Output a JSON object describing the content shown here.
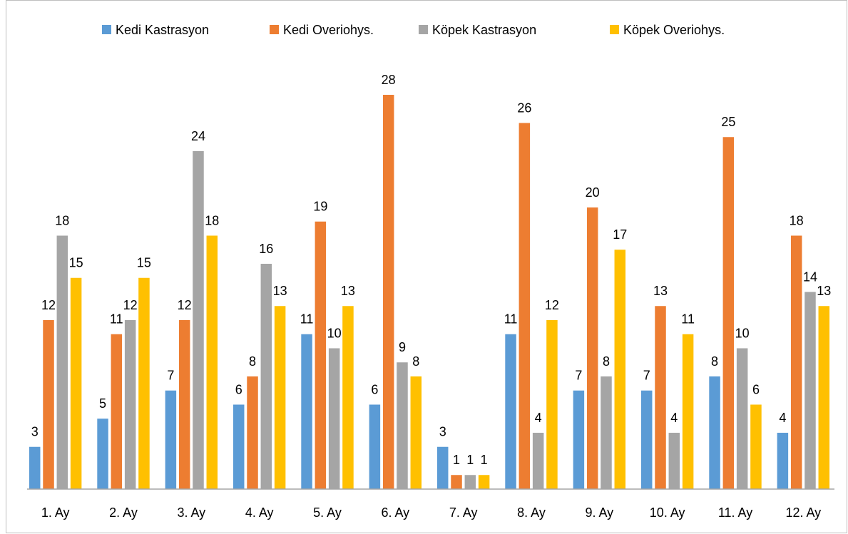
{
  "chart_data": {
    "type": "bar",
    "categories": [
      "1. Ay",
      "2. Ay",
      "3. Ay",
      "4. Ay",
      "5. Ay",
      "6. Ay",
      "7. Ay",
      "8. Ay",
      "9. Ay",
      "10. Ay",
      "11. Ay",
      "12. Ay"
    ],
    "series": [
      {
        "name": "Kedi Kastrasyon",
        "color": "#5b9bd5",
        "values": [
          3,
          5,
          7,
          6,
          11,
          6,
          3,
          11,
          7,
          7,
          8,
          4
        ]
      },
      {
        "name": "Kedi Overiohys.",
        "color": "#ed7d31",
        "values": [
          12,
          11,
          12,
          8,
          19,
          28,
          1,
          26,
          20,
          13,
          25,
          18
        ]
      },
      {
        "name": "Köpek Kastrasyon",
        "color": "#a5a5a5",
        "values": [
          18,
          12,
          24,
          16,
          10,
          9,
          1,
          4,
          8,
          4,
          10,
          14
        ]
      },
      {
        "name": "Köpek Overiohys.",
        "color": "#ffc000",
        "values": [
          15,
          15,
          18,
          13,
          13,
          8,
          1,
          12,
          17,
          11,
          6,
          13
        ]
      }
    ],
    "ylim": [
      0,
      30
    ],
    "legend": "top"
  }
}
